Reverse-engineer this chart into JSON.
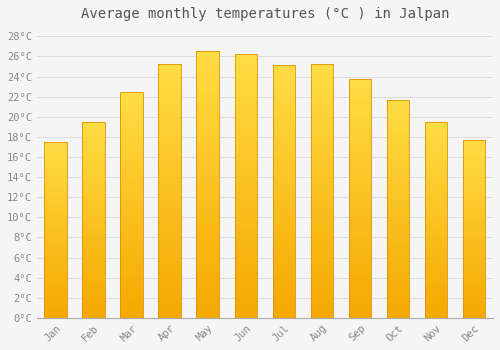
{
  "title": "Average monthly temperatures (°C ) in Jalpan",
  "months": [
    "Jan",
    "Feb",
    "Mar",
    "Apr",
    "May",
    "Jun",
    "Jul",
    "Aug",
    "Sep",
    "Oct",
    "Nov",
    "Dec"
  ],
  "values": [
    17.5,
    19.5,
    22.5,
    25.2,
    26.5,
    26.2,
    25.1,
    25.2,
    23.8,
    21.7,
    19.5,
    17.7
  ],
  "bar_color_top": "#FFDD44",
  "bar_color_bottom": "#F5A800",
  "bar_edge_color": "#E09000",
  "background_color": "#F5F5F5",
  "grid_color": "#DDDDDD",
  "ytick_labels": [
    "0°C",
    "2°C",
    "4°C",
    "6°C",
    "8°C",
    "10°C",
    "12°C",
    "14°C",
    "16°C",
    "18°C",
    "20°C",
    "22°C",
    "24°C",
    "26°C",
    "28°C"
  ],
  "ytick_values": [
    0,
    2,
    4,
    6,
    8,
    10,
    12,
    14,
    16,
    18,
    20,
    22,
    24,
    26,
    28
  ],
  "ylim": [
    0,
    29
  ],
  "title_fontsize": 10,
  "tick_fontsize": 7.5,
  "font_family": "monospace",
  "tick_color": "#888888",
  "bar_width": 0.6
}
